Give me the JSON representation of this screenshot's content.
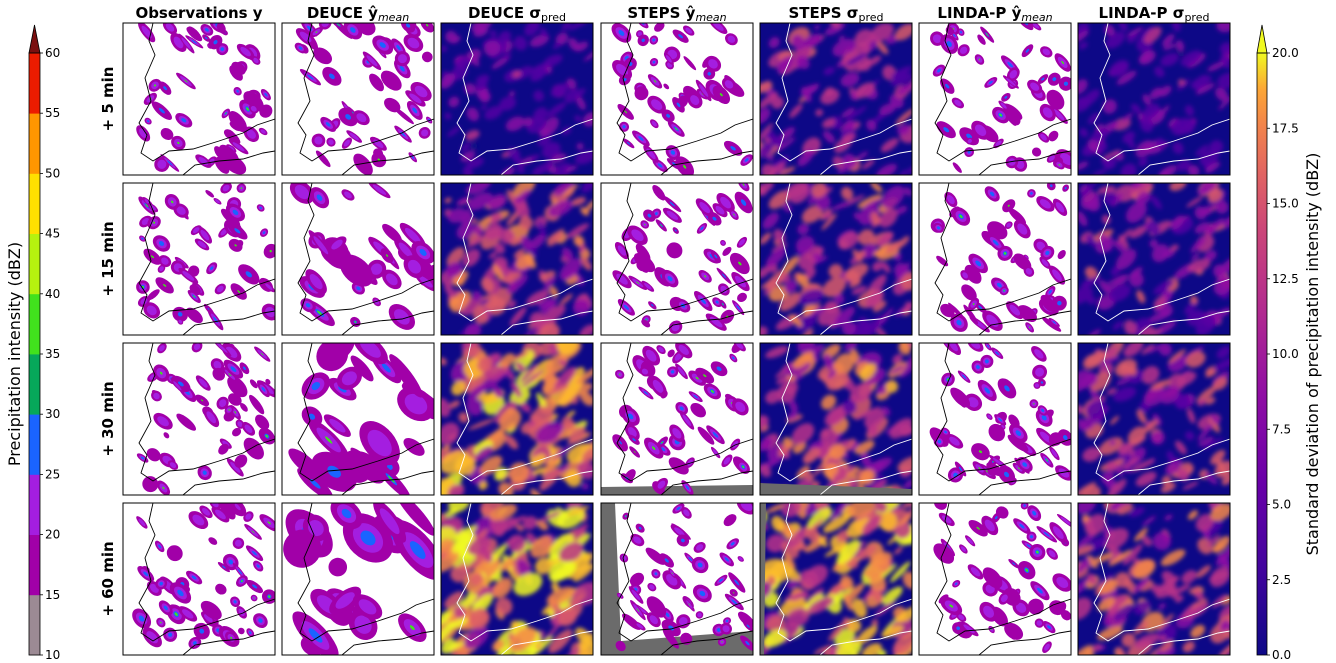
{
  "chart_data": {
    "type": "heatmap",
    "description_of_grid": "4 lead times x 7 panels of radar precipitation maps",
    "columns": [
      {
        "title": "Observations y",
        "kind": "precip"
      },
      {
        "title": "DEUCE ŷ",
        "sub": "mean",
        "kind": "precip"
      },
      {
        "title": "DEUCE σ",
        "sub": "pred",
        "kind": "sigma"
      },
      {
        "title": "STEPS ŷ",
        "sub": "mean",
        "kind": "precip"
      },
      {
        "title": "STEPS σ",
        "sub": "pred",
        "kind": "sigma"
      },
      {
        "title": "LINDA-P ŷ",
        "sub": "mean",
        "kind": "precip"
      },
      {
        "title": "LINDA-P σ",
        "sub": "pred",
        "kind": "sigma"
      }
    ],
    "rows": [
      "+ 5 min",
      "+ 15 min",
      "+ 30 min",
      "+ 60 min"
    ],
    "sigma_intensity": [
      [
        null,
        null,
        0.35,
        null,
        0.5,
        null,
        0.35
      ],
      [
        null,
        null,
        0.65,
        null,
        0.6,
        null,
        0.5
      ],
      [
        null,
        null,
        0.85,
        null,
        0.7,
        null,
        0.55
      ],
      [
        null,
        null,
        1.0,
        null,
        0.9,
        null,
        0.65
      ]
    ],
    "colorbar_left": {
      "label": "Precipitation intensity (dBZ)",
      "ticks": [
        "10",
        "15",
        "20",
        "25",
        "30",
        "35",
        "40",
        "45",
        "50",
        "55",
        "60"
      ],
      "bins": [
        "#9c8a94",
        "#a100a8",
        "#a41ee0",
        "#1a64ff",
        "#06a85a",
        "#41e21d",
        "#b6f20f",
        "#ffe000",
        "#ff9600",
        "#ec1c00"
      ],
      "over_color": "#7a0f0f"
    },
    "colorbar_right": {
      "label": "Standard deviation of precipitation intensity (dBZ)",
      "ticks": [
        "0.0",
        "2.5",
        "5.0",
        "7.5",
        "10.0",
        "12.5",
        "15.0",
        "17.5",
        "20.0"
      ],
      "range": [
        0,
        20
      ],
      "cmap": "plasma",
      "over_color": "#f0f921"
    }
  }
}
